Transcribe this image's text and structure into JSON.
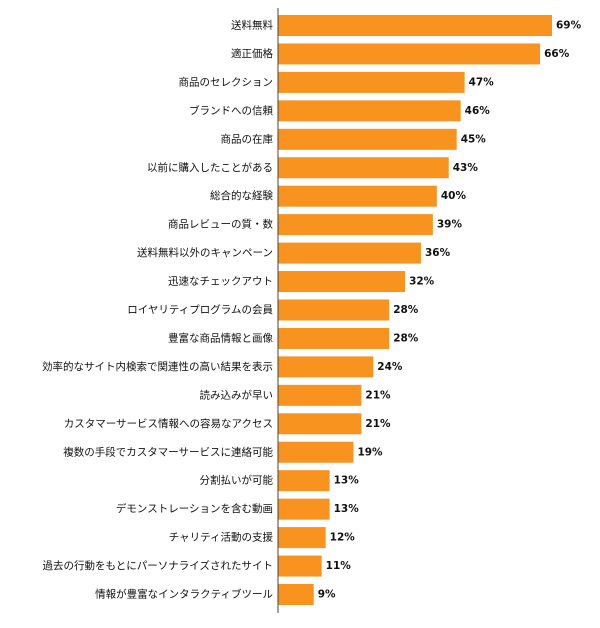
{
  "chart_data": {
    "type": "bar",
    "orientation": "horizontal",
    "title": "",
    "xlabel": "",
    "ylabel": "",
    "value_suffix": "%",
    "xlim": [
      0,
      69
    ],
    "grid": false,
    "bar_color": "#F7931E",
    "categories": [
      "送料無料",
      "適正価格",
      "商品のセレクション",
      "ブランドへの信頼",
      "商品の在庫",
      "以前に購入したことがある",
      "総合的な経験",
      "商品レビューの質・数",
      "送料無料以外のキャンペーン",
      "迅速なチェックアウト",
      "ロイヤリティプログラムの会員",
      "豊富な商品情報と画像",
      "効率的なサイト内検索で関連性の高い結果を表示",
      "読み込みが早い",
      "カスタマーサービス情報への容易なアクセス",
      "複数の手段でカスタマーサービスに連絡可能",
      "分割払いが可能",
      "デモンストレーションを含む動画",
      "チャリティ活動の支援",
      "過去の行動をもとにパーソナライズされたサイト",
      "情報が豊富なインタラクティブツール"
    ],
    "values": [
      69,
      66,
      47,
      46,
      45,
      43,
      40,
      39,
      36,
      32,
      28,
      28,
      24,
      21,
      21,
      19,
      13,
      13,
      12,
      11,
      9
    ],
    "value_labels": [
      "69%",
      "66%",
      "47%",
      "46%",
      "45%",
      "43%",
      "40%",
      "39%",
      "36%",
      "32%",
      "28%",
      "28%",
      "24%",
      "21%",
      "21%",
      "19%",
      "13%",
      "13%",
      "12%",
      "11%",
      "9%"
    ]
  }
}
